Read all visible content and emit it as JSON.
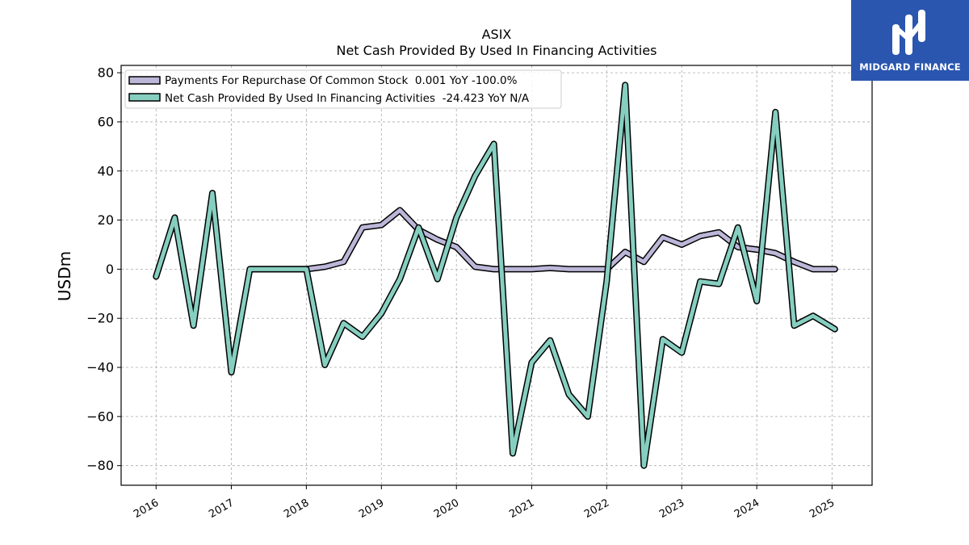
{
  "brand": {
    "name": "MIDGARD FINANCE",
    "logo_icon": "midgard-logo-icon",
    "background_color": "#2a56b0"
  },
  "chart_data": {
    "type": "line",
    "title": "ASIX",
    "subtitle": "Net Cash Provided By Used In Financing Activities",
    "xlabel": "",
    "ylabel": "USDm",
    "ylim": [
      -88,
      83
    ],
    "xlim": [
      "2015-07-15",
      "2025-07-15"
    ],
    "yticks": [
      80,
      60,
      40,
      20,
      0,
      -20,
      -40,
      -60,
      -80
    ],
    "ytick_labels": [
      "80",
      "60",
      "40",
      "20",
      "0",
      "−20",
      "−40",
      "−60",
      "−80"
    ],
    "xticks": [
      "2016-01-01",
      "2017-01-01",
      "2018-01-01",
      "2019-01-01",
      "2020-01-01",
      "2021-01-01",
      "2022-01-01",
      "2023-01-01",
      "2024-01-01",
      "2025-01-01"
    ],
    "xtick_labels": [
      "2016",
      "2017",
      "2018",
      "2019",
      "2020",
      "2021",
      "2022",
      "2023",
      "2024",
      "2025"
    ],
    "grid": true,
    "legend_position": "top-left",
    "series": [
      {
        "name": "Payments For Repurchase Of Common Stock  0.001 YoY -100.0%",
        "color": "#bcb6d8",
        "points": [
          [
            "2017-04-01",
            0
          ],
          [
            "2017-07-01",
            0
          ],
          [
            "2017-10-01",
            0
          ],
          [
            "2018-01-01",
            0
          ],
          [
            "2018-04-01",
            1
          ],
          [
            "2018-07-01",
            3
          ],
          [
            "2018-10-01",
            17
          ],
          [
            "2019-01-01",
            18
          ],
          [
            "2019-04-01",
            24
          ],
          [
            "2019-07-01",
            16
          ],
          [
            "2019-10-01",
            12
          ],
          [
            "2020-01-01",
            9
          ],
          [
            "2020-04-01",
            1
          ],
          [
            "2020-07-01",
            0
          ],
          [
            "2020-10-01",
            0
          ],
          [
            "2021-01-01",
            0
          ],
          [
            "2021-04-01",
            0.5
          ],
          [
            "2021-07-01",
            0
          ],
          [
            "2021-10-01",
            0
          ],
          [
            "2022-01-01",
            0
          ],
          [
            "2022-04-01",
            7
          ],
          [
            "2022-07-01",
            3
          ],
          [
            "2022-10-01",
            13
          ],
          [
            "2023-01-01",
            10
          ],
          [
            "2023-04-01",
            13.5
          ],
          [
            "2023-07-01",
            15
          ],
          [
            "2023-10-01",
            9
          ],
          [
            "2024-01-01",
            8
          ],
          [
            "2024-04-01",
            6.5
          ],
          [
            "2024-07-01",
            3
          ],
          [
            "2024-10-01",
            0
          ],
          [
            "2025-01-15",
            0
          ]
        ]
      },
      {
        "name": "Net Cash Provided By Used In Financing Activities  -24.423 YoY N/A",
        "color": "#86cfc0",
        "points": [
          [
            "2016-01-01",
            -3
          ],
          [
            "2016-04-01",
            21
          ],
          [
            "2016-07-01",
            -23
          ],
          [
            "2016-10-01",
            31
          ],
          [
            "2017-01-01",
            -42
          ],
          [
            "2017-04-01",
            0
          ],
          [
            "2017-07-01",
            0
          ],
          [
            "2017-10-01",
            0
          ],
          [
            "2018-01-01",
            0
          ],
          [
            "2018-04-01",
            -39
          ],
          [
            "2018-07-01",
            -22
          ],
          [
            "2018-10-01",
            -27.5
          ],
          [
            "2019-01-01",
            -18
          ],
          [
            "2019-04-01",
            -4
          ],
          [
            "2019-07-01",
            17
          ],
          [
            "2019-10-01",
            -4
          ],
          [
            "2020-01-01",
            21
          ],
          [
            "2020-04-01",
            38
          ],
          [
            "2020-07-01",
            51
          ],
          [
            "2020-10-01",
            -75
          ],
          [
            "2021-01-01",
            -38
          ],
          [
            "2021-04-01",
            -29
          ],
          [
            "2021-07-01",
            -51
          ],
          [
            "2021-10-01",
            -60
          ],
          [
            "2022-01-01",
            -5
          ],
          [
            "2022-04-01",
            75
          ],
          [
            "2022-07-01",
            -80
          ],
          [
            "2022-10-01",
            -28.5
          ],
          [
            "2023-01-01",
            -34
          ],
          [
            "2023-04-01",
            -5
          ],
          [
            "2023-07-01",
            -6
          ],
          [
            "2023-10-01",
            17
          ],
          [
            "2024-01-01",
            -13
          ],
          [
            "2024-04-01",
            64
          ],
          [
            "2024-07-01",
            -23
          ],
          [
            "2024-10-01",
            -19
          ],
          [
            "2025-01-15",
            -24.4
          ]
        ]
      }
    ]
  }
}
